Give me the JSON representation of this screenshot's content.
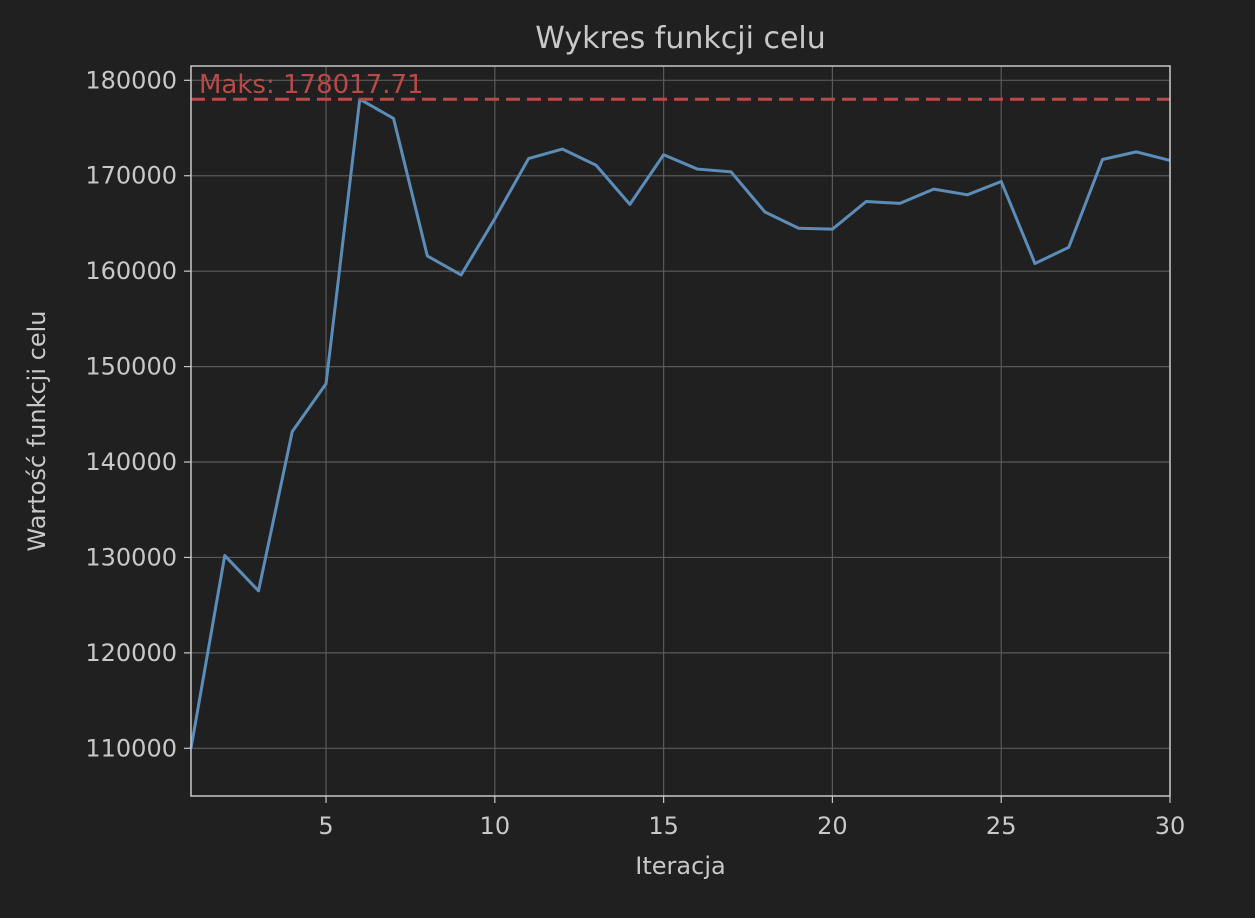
{
  "chart_data": {
    "type": "line",
    "title": "Wykres funkcji celu",
    "xlabel": "Iteracja",
    "ylabel": "Wartość funkcji celu",
    "xlim": [
      1,
      30
    ],
    "ylim": [
      105000,
      181500
    ],
    "x_ticks": [
      5,
      10,
      15,
      20,
      25,
      30
    ],
    "y_ticks": [
      110000,
      120000,
      130000,
      140000,
      150000,
      160000,
      170000,
      180000
    ],
    "grid": true,
    "series": [
      {
        "x": [
          1,
          2,
          3,
          4,
          5,
          6,
          7,
          8,
          9,
          10,
          11,
          12,
          13,
          14,
          15,
          16,
          17,
          18,
          19,
          20,
          21,
          22,
          23,
          24,
          25,
          26,
          27,
          28,
          29,
          30
        ],
        "values": [
          110000,
          130200,
          126500,
          143200,
          148200,
          178017.71,
          176000,
          161600,
          159600,
          165500,
          171800,
          172800,
          171100,
          167000,
          172200,
          170700,
          170400,
          166200,
          164500,
          164400,
          167300,
          167100,
          168600,
          168000,
          169400,
          160800,
          162500,
          171700,
          172500,
          171600
        ],
        "color": "#5b8db8"
      }
    ],
    "annotations": [
      {
        "type": "hline",
        "y": 178017.71,
        "color": "#b94a48",
        "style": "dashed",
        "label": "Maks: 178017.71"
      }
    ]
  },
  "colors": {
    "background": "#202020",
    "axes": "#c8c8c8",
    "grid": "#5a5a5a",
    "text": "#c8c8c8",
    "line": "#5b8db8",
    "max_line": "#b94a48"
  }
}
